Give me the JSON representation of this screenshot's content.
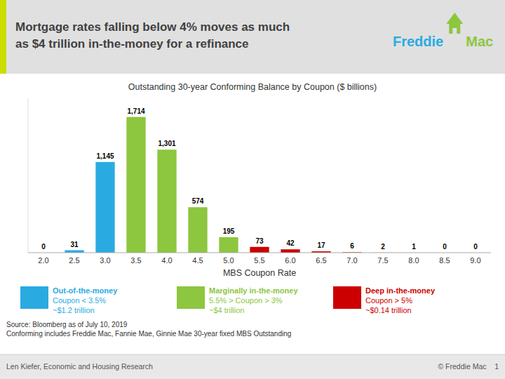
{
  "chart_data": {
    "type": "bar",
    "title": "Mortgage rates falling below 4% moves as much\nas $4 trillion in-the-money for a refinance",
    "subtitle": "Outstanding 30-year Conforming Balance by Coupon ($ billions)",
    "xlabel": "MBS Coupon Rate",
    "categories": [
      "2.0",
      "2.5",
      "3.0",
      "3.5",
      "4.0",
      "4.5",
      "5.0",
      "5.5",
      "6.0",
      "6.5",
      "7.0",
      "7.5",
      "8.0",
      "8.5",
      "9.0"
    ],
    "values": [
      0,
      31,
      1145,
      1714,
      1301,
      574,
      195,
      73,
      42,
      17,
      6,
      2,
      1,
      0,
      0
    ],
    "value_labels": [
      "0",
      "31",
      "1,145",
      "1,714",
      "1,301",
      "574",
      "195",
      "73",
      "42",
      "17",
      "6",
      "2",
      "1",
      "0",
      "0"
    ],
    "colors": [
      "#29ABE2",
      "#29ABE2",
      "#29ABE2",
      "#8DC63F",
      "#8DC63F",
      "#8DC63F",
      "#8DC63F",
      "#CC0000",
      "#CC0000",
      "#CC0000",
      "#CC0000",
      "#FF9999",
      "#FF9999",
      "#FF9999",
      "#FF9999"
    ],
    "ylim": [
      0,
      1950
    ],
    "yticks": [],
    "tick_labels": "x",
    "grid": false,
    "data_labels": true,
    "key": [
      {
        "lines": [
          "Out-of-the-money",
          "Coupon < 3.5%",
          "~$1.2 trillion"
        ],
        "color": "#29ABE2"
      },
      {
        "lines": [
          "Marginally in-the-money",
          "5.5% > Coupon > 3%",
          "~$4 trillion"
        ],
        "color": "#8DC63F"
      },
      {
        "lines": [
          "Deep in-the-money",
          "Coupon > 5%",
          "~$0.14 trillion"
        ],
        "color": "#CC0000"
      }
    ],
    "annotations": [
      "Source: Bloomberg as of July 10, 2019\nConforming includes Freddie Mac, Fannie Mae, Ginnie Mae 30-year fixed MBS Outstanding"
    ],
    "logo": [
      {
        "text": "Freddie",
        "color": "#29ABE2"
      },
      {
        "text": "Mac",
        "color": "#8DC63F"
      }
    ],
    "footer": [
      "Len Kiefer, Economic and Housing Research",
      "© Freddie Mac    1"
    ]
  }
}
